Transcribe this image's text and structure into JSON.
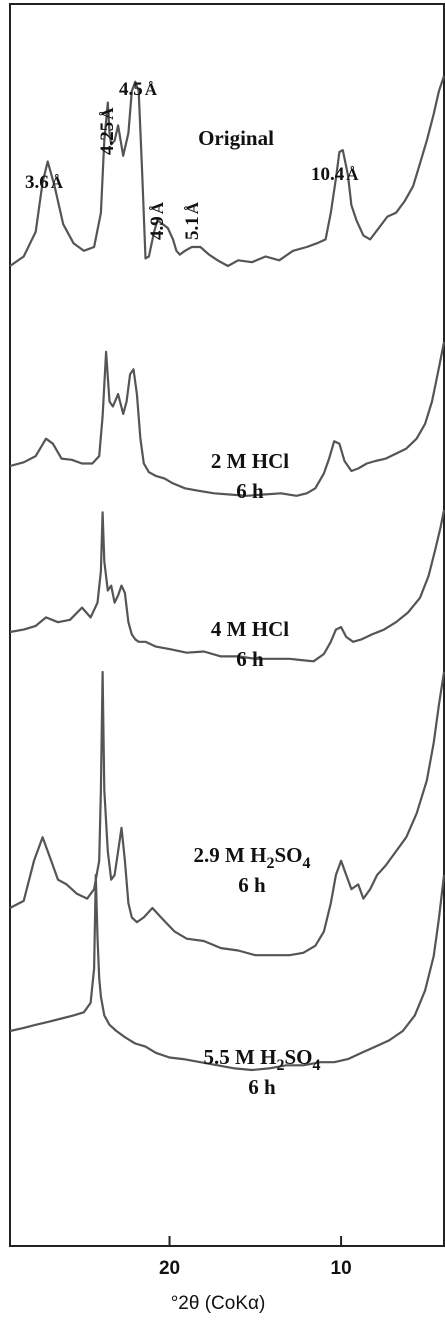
{
  "chart_data": {
    "type": "line",
    "title": "",
    "xlabel": "°2θ (CoKα)",
    "ylabel": "",
    "x_reversed": true,
    "xlim": [
      29.3,
      4.0
    ],
    "x_ticks": [
      20,
      10
    ],
    "grid": false,
    "legend": "none",
    "line_color": "#555555",
    "series": [
      {
        "label_lines": [
          {
            "text": "Original"
          }
        ],
        "x": [
          29.3,
          28.5,
          27.8,
          27.4,
          27.1,
          26.7,
          26.2,
          25.6,
          25.0,
          24.4,
          24.0,
          23.8,
          23.6,
          23.5,
          23.4,
          23.2,
          23.0,
          22.7,
          22.4,
          22.2,
          22.0,
          21.8,
          21.6,
          21.4,
          21.2,
          20.9,
          20.7,
          20.4,
          20.1,
          19.8,
          19.6,
          19.4,
          19.1,
          18.7,
          18.2,
          17.7,
          17.2,
          16.6,
          16.0,
          15.2,
          14.4,
          13.6,
          12.8,
          12.0,
          11.4,
          10.9,
          10.6,
          10.3,
          10.1,
          9.9,
          9.6,
          9.4,
          9.1,
          8.7,
          8.3,
          7.8,
          7.3,
          6.8,
          6.3,
          5.8,
          5.4,
          5.0,
          4.6,
          4.3,
          4.0
        ],
        "y": [
          0.0,
          0.05,
          0.18,
          0.44,
          0.55,
          0.42,
          0.22,
          0.12,
          0.08,
          0.1,
          0.28,
          0.66,
          0.86,
          0.7,
          0.64,
          0.66,
          0.74,
          0.58,
          0.7,
          0.92,
          0.97,
          0.92,
          0.5,
          0.04,
          0.05,
          0.18,
          0.24,
          0.22,
          0.2,
          0.14,
          0.08,
          0.06,
          0.08,
          0.1,
          0.1,
          0.06,
          0.03,
          0.0,
          0.03,
          0.02,
          0.05,
          0.03,
          0.08,
          0.1,
          0.12,
          0.14,
          0.28,
          0.46,
          0.6,
          0.61,
          0.48,
          0.32,
          0.24,
          0.16,
          0.14,
          0.2,
          0.26,
          0.28,
          0.34,
          0.42,
          0.54,
          0.66,
          0.8,
          0.92,
          1.0
        ]
      },
      {
        "label_lines": [
          {
            "text": "2 M HCl"
          },
          {
            "text": "6 h"
          }
        ],
        "x": [
          29.3,
          28.5,
          27.8,
          27.2,
          26.8,
          26.3,
          25.7,
          25.1,
          24.5,
          24.1,
          23.9,
          23.7,
          23.5,
          23.3,
          23.0,
          22.7,
          22.5,
          22.3,
          22.1,
          21.9,
          21.7,
          21.5,
          21.2,
          20.8,
          20.3,
          19.8,
          19.1,
          18.3,
          17.4,
          16.5,
          15.5,
          14.5,
          13.5,
          12.6,
          12.0,
          11.5,
          11.0,
          10.7,
          10.4,
          10.1,
          9.8,
          9.4,
          9.0,
          8.5,
          8.0,
          7.4,
          6.8,
          6.2,
          5.6,
          5.1,
          4.7,
          4.4,
          4.2,
          4.0
        ],
        "y": [
          0.0,
          0.03,
          0.08,
          0.22,
          0.18,
          0.06,
          0.05,
          0.02,
          0.02,
          0.08,
          0.4,
          0.92,
          0.52,
          0.48,
          0.58,
          0.42,
          0.52,
          0.74,
          0.78,
          0.58,
          0.22,
          0.02,
          -0.05,
          -0.08,
          -0.1,
          -0.14,
          -0.18,
          -0.2,
          -0.22,
          -0.23,
          -0.24,
          -0.23,
          -0.22,
          -0.24,
          -0.22,
          -0.18,
          -0.06,
          0.06,
          0.2,
          0.18,
          0.04,
          -0.04,
          -0.02,
          0.02,
          0.04,
          0.06,
          0.1,
          0.14,
          0.22,
          0.34,
          0.52,
          0.72,
          0.86,
          1.0
        ]
      },
      {
        "label_lines": [
          {
            "text": "4 M HCl"
          },
          {
            "text": "6 h"
          }
        ],
        "x": [
          29.3,
          28.5,
          27.8,
          27.2,
          26.5,
          25.8,
          25.1,
          24.6,
          24.2,
          24.0,
          23.9,
          23.8,
          23.6,
          23.4,
          23.2,
          23.0,
          22.8,
          22.6,
          22.4,
          22.2,
          22.0,
          21.8,
          21.4,
          20.8,
          20.0,
          19.0,
          18.0,
          17.0,
          16.0,
          15.0,
          14.0,
          13.0,
          12.3,
          11.6,
          11.0,
          10.6,
          10.3,
          10.0,
          9.7,
          9.3,
          8.8,
          8.2,
          7.5,
          6.8,
          6.1,
          5.4,
          4.9,
          4.5,
          4.2,
          4.0
        ],
        "y": [
          0.0,
          0.02,
          0.05,
          0.12,
          0.08,
          0.1,
          0.2,
          0.12,
          0.24,
          0.5,
          0.98,
          0.58,
          0.34,
          0.38,
          0.24,
          0.3,
          0.38,
          0.32,
          0.08,
          -0.02,
          -0.06,
          -0.08,
          -0.08,
          -0.12,
          -0.14,
          -0.17,
          -0.16,
          -0.2,
          -0.2,
          -0.22,
          -0.22,
          -0.22,
          -0.23,
          -0.24,
          -0.18,
          -0.08,
          0.02,
          0.04,
          -0.04,
          -0.08,
          -0.06,
          -0.02,
          0.02,
          0.08,
          0.16,
          0.28,
          0.46,
          0.68,
          0.86,
          1.0
        ]
      },
      {
        "label_lines": [
          {
            "text": "2.9 M H",
            "sub": "2",
            "after": "SO",
            "sub2": "4"
          },
          {
            "text": "6 h"
          }
        ],
        "x": [
          29.3,
          28.5,
          27.9,
          27.4,
          27.0,
          26.5,
          26.0,
          25.4,
          24.8,
          24.4,
          24.1,
          24.0,
          23.9,
          23.8,
          23.6,
          23.4,
          23.2,
          23.0,
          22.8,
          22.6,
          22.4,
          22.2,
          21.9,
          21.5,
          21.0,
          20.5,
          20.1,
          19.7,
          19.0,
          18.0,
          17.0,
          16.0,
          15.0,
          14.0,
          13.0,
          12.2,
          11.5,
          11.0,
          10.6,
          10.3,
          10.0,
          9.7,
          9.4,
          9.0,
          8.7,
          8.3,
          7.9,
          7.4,
          6.8,
          6.2,
          5.6,
          5.0,
          4.6,
          4.3,
          4.0
        ],
        "y": [
          0.0,
          0.03,
          0.2,
          0.3,
          0.22,
          0.12,
          0.1,
          0.06,
          0.04,
          0.08,
          0.2,
          0.5,
          1.0,
          0.5,
          0.24,
          0.12,
          0.14,
          0.24,
          0.34,
          0.2,
          0.02,
          -0.04,
          -0.06,
          -0.04,
          0.0,
          -0.04,
          -0.07,
          -0.1,
          -0.13,
          -0.14,
          -0.17,
          -0.18,
          -0.2,
          -0.2,
          -0.2,
          -0.19,
          -0.16,
          -0.1,
          0.02,
          0.14,
          0.2,
          0.14,
          0.08,
          0.1,
          0.04,
          0.08,
          0.14,
          0.18,
          0.24,
          0.3,
          0.4,
          0.54,
          0.7,
          0.86,
          1.0
        ]
      },
      {
        "label_lines": [
          {
            "text": "5.5 M H",
            "sub": "2",
            "after": "SO",
            "sub2": "4"
          },
          {
            "text": "6 h"
          }
        ],
        "x": [
          29.3,
          28.5,
          27.8,
          27.0,
          26.3,
          25.6,
          25.0,
          24.6,
          24.4,
          24.3,
          24.2,
          24.1,
          24.0,
          23.8,
          23.5,
          23.1,
          22.6,
          22.0,
          21.4,
          20.8,
          20.0,
          19.2,
          18.2,
          17.2,
          16.2,
          15.2,
          14.2,
          13.2,
          12.2,
          11.2,
          10.4,
          9.6,
          8.8,
          8.0,
          7.2,
          6.4,
          5.7,
          5.1,
          4.6,
          4.3,
          4.0
        ],
        "y": [
          0.0,
          0.02,
          0.04,
          0.06,
          0.08,
          0.1,
          0.12,
          0.18,
          0.4,
          1.0,
          0.6,
          0.34,
          0.22,
          0.1,
          0.04,
          0.0,
          -0.04,
          -0.08,
          -0.1,
          -0.14,
          -0.17,
          -0.18,
          -0.2,
          -0.22,
          -0.24,
          -0.25,
          -0.24,
          -0.22,
          -0.22,
          -0.2,
          -0.2,
          -0.18,
          -0.14,
          -0.1,
          -0.06,
          0.0,
          0.1,
          0.26,
          0.48,
          0.72,
          1.0
        ]
      }
    ],
    "peak_annotations": [
      {
        "text": "3.6",
        "unit": "Å",
        "x": 27.2,
        "rotated": false
      },
      {
        "text": "4.25",
        "unit": "Å",
        "x": 23.5,
        "rotated": true
      },
      {
        "text": "4.5",
        "unit": "Å",
        "x": 22.0,
        "rotated": false
      },
      {
        "text": "4.9",
        "unit": "Å",
        "x": 20.5,
        "rotated": true
      },
      {
        "text": "5.1",
        "unit": "Å",
        "x": 19.3,
        "rotated": true
      },
      {
        "text": "10.4",
        "unit": "Å",
        "x": 9.7,
        "rotated": false
      }
    ]
  }
}
